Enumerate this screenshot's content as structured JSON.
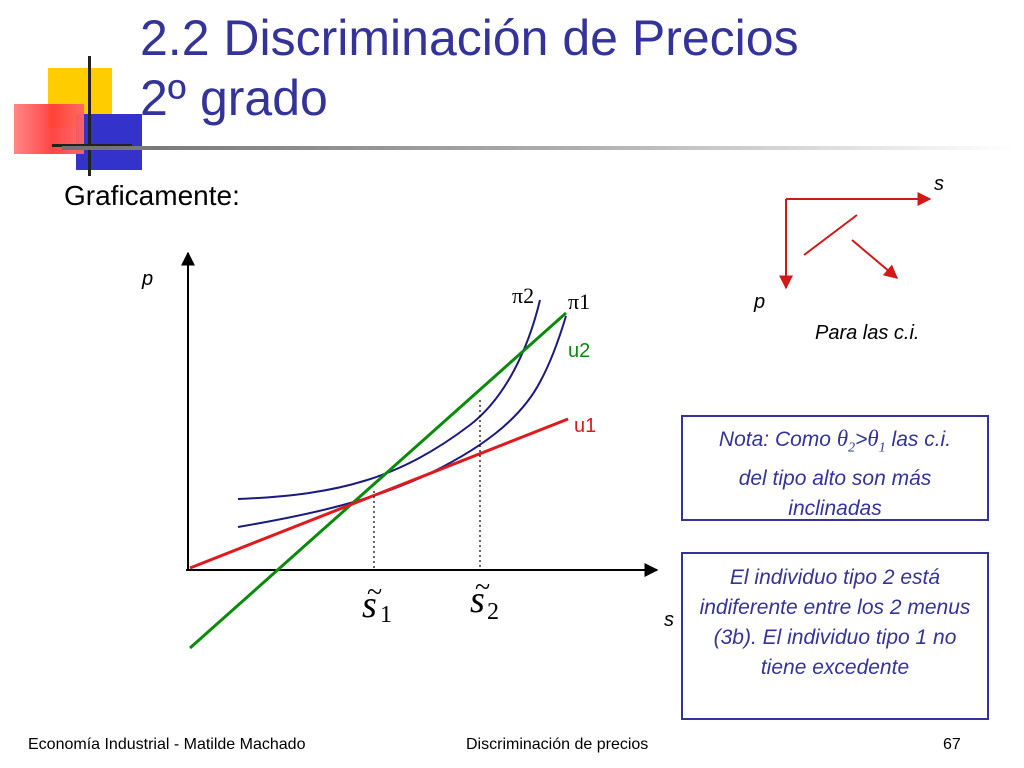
{
  "slide": {
    "title_line1": "2.2 Discriminación de Precios",
    "title_line2": "2º grado",
    "subtitle": "Graficamente:"
  },
  "graph": {
    "y_axis_label": "p",
    "x_axis_label": "s",
    "curve_labels": {
      "pi2": "π2",
      "pi1": "π1",
      "u2": "u2",
      "u1": "u1"
    },
    "tick_s1": {
      "base": "s",
      "tilde": "~",
      "sub": "1"
    },
    "tick_s2": {
      "base": "s",
      "tilde": "~",
      "sub": "2"
    }
  },
  "inset": {
    "x_label": "s",
    "y_label": "p",
    "caption": "Para las c.i."
  },
  "notes": {
    "note1_prefix": "Nota: Como ",
    "note1_theta": "θ",
    "note1_sub2": "2",
    "note1_gt": ">",
    "note1_sub1": "1",
    "note1_after": " las c.i.",
    "note1_line2": "del tipo alto son más",
    "note1_line3": "inclinadas",
    "note2_text": "El individuo tipo 2 está indiferente entre los 2 menus (3b). El individuo tipo 1 no tiene excedente"
  },
  "footer": {
    "left": "Economía Industrial - Matilde Machado",
    "center": "Discriminación de precios",
    "page": "67"
  },
  "colors": {
    "title": "#333399",
    "pi_curves": "#1a1a80",
    "u2_line": "#0a8a0a",
    "u1_line": "#e0191e",
    "inset_arrows": "#d21919",
    "note_text": "#333399"
  }
}
